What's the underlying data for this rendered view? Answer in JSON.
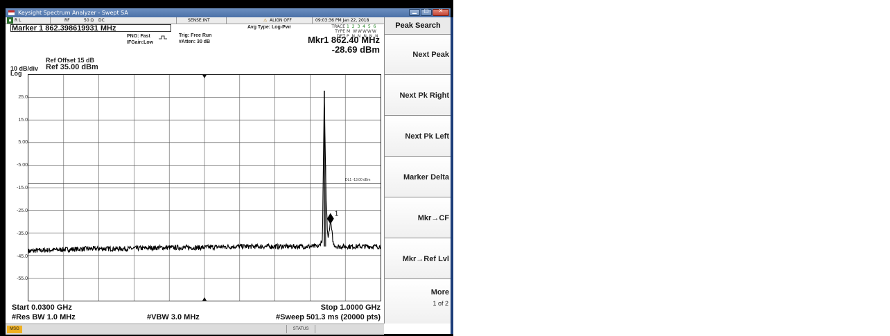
{
  "window": {
    "title": "Keysight Spectrum Analyzer - Swept SA"
  },
  "status_row": {
    "mode": "R L",
    "rf": "RF",
    "impedance": "50 Ω",
    "coupling": "DC",
    "sense": "SENSE:INT",
    "align": "ALIGN OFF",
    "datetime": "09:03:36 PM Jan 22, 2018"
  },
  "marker_readout": "Marker 1 862.398619931 MHz",
  "settings": {
    "pno": "PNO: Fast",
    "ifgain": "IFGain:Low",
    "trig": "Trig: Free Run",
    "atten": "#Atten: 30 dB",
    "avg_type": "Avg Type: Log-Pwr"
  },
  "trace_info": {
    "trace_label": "TRACE",
    "trace_value": "1 2 3 4 5 6",
    "type_label": "TYPE",
    "type_value": "M WWWWW",
    "det_label": "DET",
    "det_value": "P N N N N N"
  },
  "ref": {
    "offset": "Ref Offset 15 dB",
    "scale": "10 dB/div",
    "level": "Ref 35.00 dBm",
    "log": "Log"
  },
  "marker_big": {
    "freq": "Mkr1 862.40 MHz",
    "amp": "-28.69 dBm"
  },
  "y_axis_labels": [
    "25.0",
    "15.0",
    "5.00",
    "-5.00",
    "-15.0",
    "-25.0",
    "-35.0",
    "-45.0",
    "-55.0"
  ],
  "display_line": {
    "label": "DL1 -13.00 dBm",
    "value": -13.0
  },
  "marker_tag": "1",
  "bottom": {
    "start": "Start 0.0300 GHz",
    "stop": "Stop 1.0000 GHz",
    "rbw": "#Res BW 1.0 MHz",
    "vbw": "#VBW 3.0 MHz",
    "sweep": "#Sweep  501.3 ms (20000 pts)"
  },
  "msg_bar": {
    "msg": "MSG",
    "status": "STATUS"
  },
  "softkeys": {
    "title": "Peak Search",
    "items": [
      {
        "label": "Next Peak"
      },
      {
        "label": "Next Pk Right"
      },
      {
        "label": "Next Pk Left"
      },
      {
        "label": "Marker Delta"
      },
      {
        "label": "Mkr→CF"
      },
      {
        "label": "Mkr→Ref Lvl"
      }
    ],
    "more": "More",
    "more_page": "1 of 2"
  },
  "chart_data": {
    "type": "line",
    "x_range_ghz": [
      0.03,
      1.0
    ],
    "y_range_dbm": [
      -65,
      35
    ],
    "grid": true,
    "series": [
      {
        "x_ghz": [
          0.03,
          0.1,
          0.2,
          0.3,
          0.4,
          0.5,
          0.6,
          0.7,
          0.8,
          0.83,
          0.84,
          0.845,
          0.85,
          0.855,
          0.86,
          0.862,
          0.865,
          0.87,
          0.88,
          0.9,
          0.95,
          1.0
        ],
        "y_dbm": [
          -43,
          -42.5,
          -42,
          -42,
          -41.5,
          -41.5,
          -41,
          -41,
          -41,
          -41,
          -38,
          28,
          -20,
          -38,
          -33,
          -28.69,
          -33,
          -40,
          -41,
          -41,
          -41,
          -41
        ]
      }
    ],
    "marker": {
      "x_ghz": 0.862,
      "y_dbm": -28.69,
      "label": "1"
    }
  },
  "colors": {
    "trace": "#000000",
    "softkey_bg": "#f0f0f0",
    "titlebar": "#4b71a8",
    "msg_icon": "#f0b020"
  }
}
